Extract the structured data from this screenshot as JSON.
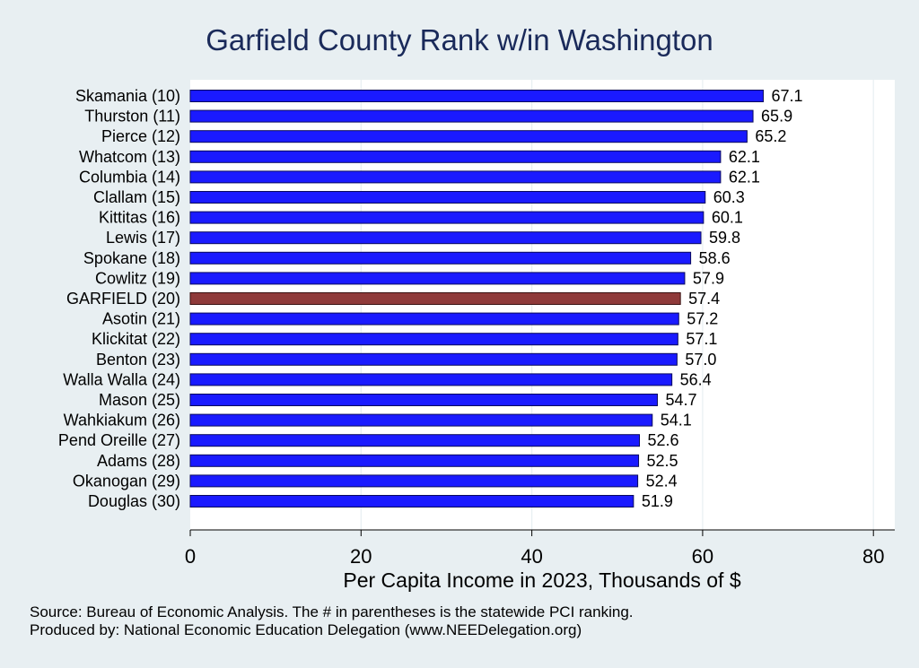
{
  "chart_data": {
    "type": "bar",
    "orientation": "horizontal",
    "title": "Garfield County Rank w/in Washington",
    "xlabel": "Per Capita Income in 2023, Thousands of $",
    "ylabel": "",
    "xlim": [
      0,
      82.5
    ],
    "xticks": [
      0,
      20,
      40,
      60,
      80
    ],
    "grid": true,
    "categories": [
      "Skamania (10)",
      "Thurston (11)",
      "Pierce (12)",
      "Whatcom (13)",
      "Columbia (14)",
      "Clallam (15)",
      "Kittitas (16)",
      "Lewis (17)",
      "Spokane (18)",
      "Cowlitz (19)",
      "GARFIELD (20)",
      "Asotin (21)",
      "Klickitat (22)",
      "Benton (23)",
      "Walla Walla (24)",
      "Mason (25)",
      "Wahkiakum (26)",
      "Pend Oreille (27)",
      "Adams (28)",
      "Okanogan (29)",
      "Douglas (30)"
    ],
    "values": [
      67.1,
      65.9,
      65.2,
      62.1,
      62.1,
      60.3,
      60.1,
      59.8,
      58.6,
      57.9,
      57.4,
      57.2,
      57.1,
      57.0,
      56.4,
      54.7,
      54.1,
      52.6,
      52.5,
      52.4,
      51.9
    ],
    "value_labels": [
      "67.1",
      "65.9",
      "65.2",
      "62.1",
      "62.1",
      "60.3",
      "60.1",
      "59.8",
      "58.6",
      "57.9",
      "57.4",
      "57.2",
      "57.1",
      "57.0",
      "56.4",
      "54.7",
      "54.1",
      "52.6",
      "52.5",
      "52.4",
      "51.9"
    ],
    "highlight_category": "GARFIELD (20)",
    "colors": {
      "bar": "#1a1aff",
      "bar_outline": "#0a0a5c",
      "highlight": "#8f3a3a",
      "highlight_outline": "#3a1010",
      "plot_background": "#ffffff",
      "page_background": "#e8eff2",
      "grid": "#e8eff2",
      "title": "#1a2a5a"
    }
  },
  "footnotes": {
    "source": "Source: Bureau of Economic Analysis. The # in parentheses is the statewide PCI ranking.",
    "produced_by": "Produced by: National Economic Education Delegation (www.NEEDelegation.org)"
  }
}
